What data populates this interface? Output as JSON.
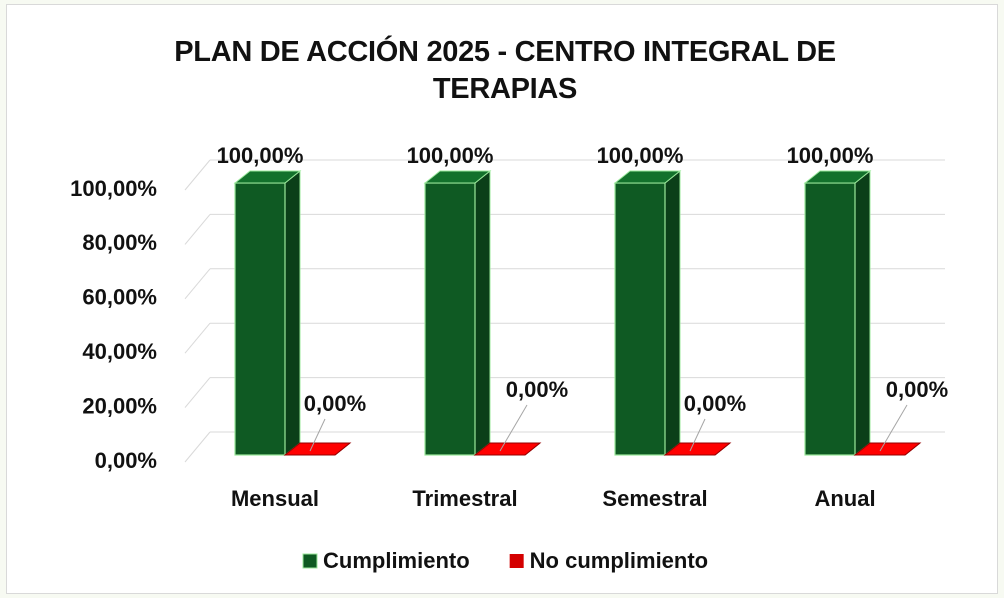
{
  "chart_data": {
    "type": "bar3d",
    "title": "PLAN DE ACCIÓN 2025 - CENTRO INTEGRAL DE TERAPIAS",
    "categories": [
      "Mensual",
      "Trimestral",
      "Semestral",
      "Anual"
    ],
    "series": [
      {
        "name": "Cumplimiento",
        "color": "#0f5a23",
        "values": [
          100,
          100,
          100,
          100
        ],
        "value_labels": [
          "100,00%",
          "100,00%",
          "100,00%",
          "100,00%"
        ]
      },
      {
        "name": "No cumplimiento",
        "color": "#d40000",
        "values": [
          0,
          0,
          0,
          0
        ],
        "value_labels": [
          "0,00%",
          "0,00%",
          "0,00%",
          "0,00%"
        ]
      }
    ],
    "ylim": [
      0,
      100
    ],
    "yticks": [
      {
        "value": 0,
        "label": "0,00%"
      },
      {
        "value": 20,
        "label": "20,00%"
      },
      {
        "value": 40,
        "label": "40,00%"
      },
      {
        "value": 60,
        "label": "60,00%"
      },
      {
        "value": 80,
        "label": "80,00%"
      },
      {
        "value": 100,
        "label": "100,00%"
      }
    ],
    "grid": true,
    "legend": "bottom"
  }
}
